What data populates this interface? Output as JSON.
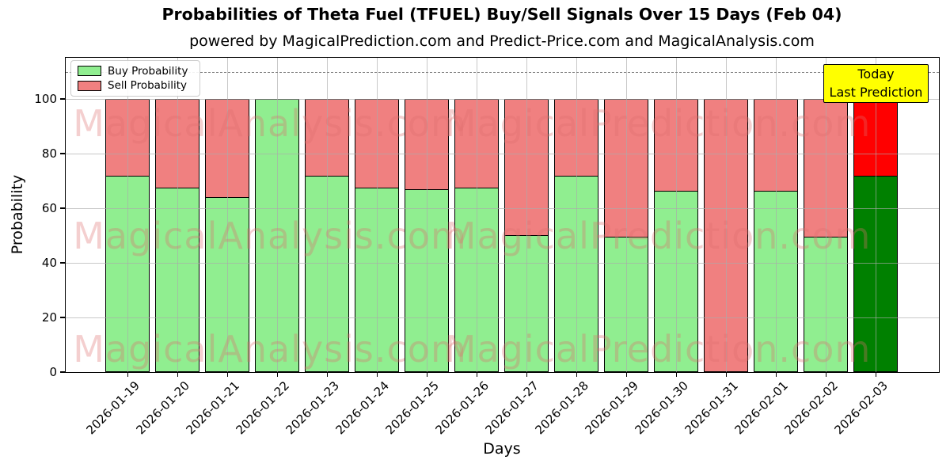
{
  "title": "Probabilities of Theta Fuel (TFUEL) Buy/Sell Signals Over 15 Days (Feb 04)",
  "subtitle": "powered by MagicalPrediction.com and Predict-Price.com and MagicalAnalysis.com",
  "legend": {
    "items": [
      {
        "label": "Buy Probability",
        "color": "#90EE90"
      },
      {
        "label": "Sell Probability",
        "color": "#F08080"
      }
    ]
  },
  "annotation": {
    "line1": "Today",
    "line2": "Last Prediction"
  },
  "axes": {
    "xlabel": "Days",
    "ylabel": "Probability",
    "yticks": [
      0,
      20,
      40,
      60,
      80,
      100
    ]
  },
  "watermarks": {
    "left_text": "MagicalAnalysis.com",
    "right_text": "MagicalPrediction.com"
  },
  "colors": {
    "buy": "#90EE90",
    "sell": "#F08080",
    "today_buy": "#008000",
    "today_sell": "#FF0000",
    "annotation_bg": "#FFFF00",
    "dashed_line": "#7F7F7F",
    "grid": "#AAAAAA",
    "bar_edge": "#000000"
  },
  "chart_data": {
    "type": "bar",
    "stacked": true,
    "title": "Probabilities of Theta Fuel (TFUEL) Buy/Sell Signals Over 15 Days (Feb 04)",
    "xlabel": "Days",
    "ylabel": "Probability",
    "ylim": [
      0,
      115
    ],
    "yticks": [
      0,
      20,
      40,
      60,
      80,
      100
    ],
    "grid": true,
    "legend_position": "upper left",
    "dashed_line_y": 110,
    "categories": [
      "2026-01-19",
      "2026-01-20",
      "2026-01-21",
      "2026-01-22",
      "2026-01-23",
      "2026-01-24",
      "2026-01-25",
      "2026-01-26",
      "2026-01-27",
      "2026-01-28",
      "2026-01-29",
      "2026-01-30",
      "2026-01-31",
      "2026-02-01",
      "2026-02-02",
      "2026-02-03"
    ],
    "series": [
      {
        "name": "Buy Probability",
        "color": "#90EE90",
        "values": [
          72,
          67.5,
          64,
          100,
          72,
          67.5,
          67,
          67.5,
          50,
          72,
          49.5,
          66.5,
          0,
          66.5,
          49.5,
          72
        ]
      },
      {
        "name": "Sell Probability",
        "color": "#F08080",
        "values": [
          28,
          32.5,
          36,
          0,
          28,
          32.5,
          33,
          32.5,
          50,
          28,
          50.5,
          33.5,
          100,
          33.5,
          50.5,
          28
        ]
      }
    ],
    "today": {
      "index": 15,
      "buy_color": "#008000",
      "sell_color": "#FF0000",
      "label": "Today / Last Prediction"
    }
  }
}
